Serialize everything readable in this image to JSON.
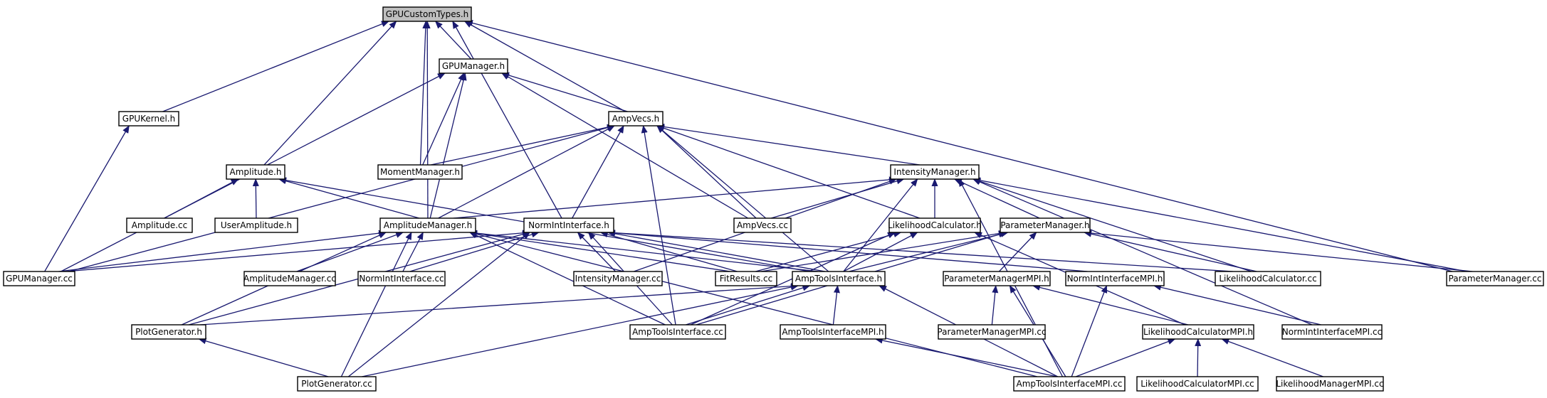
{
  "graph": {
    "title": "",
    "edge_color": "#191970",
    "root_fill": "#bfbfbf",
    "nodes": [
      {
        "id": "gpucustomtypes_h",
        "label": "GPUCustomTypes.h",
        "root": true
      },
      {
        "id": "gpumanager_h",
        "label": "GPUManager.h"
      },
      {
        "id": "gpukernel_h",
        "label": "GPUKernel.h"
      },
      {
        "id": "ampvecs_h",
        "label": "AmpVecs.h"
      },
      {
        "id": "amplitude_h",
        "label": "Amplitude.h"
      },
      {
        "id": "momentmanager_h",
        "label": "MomentManager.h"
      },
      {
        "id": "intensitymanager_h",
        "label": "IntensityManager.h"
      },
      {
        "id": "amplitude_cc",
        "label": "Amplitude.cc"
      },
      {
        "id": "useramplitude_h",
        "label": "UserAmplitude.h"
      },
      {
        "id": "amplitudemanager_h",
        "label": "AmplitudeManager.h"
      },
      {
        "id": "normintinterface_h",
        "label": "NormIntInterface.h"
      },
      {
        "id": "ampvecs_cc",
        "label": "AmpVecs.cc"
      },
      {
        "id": "likelihoodcalculator_h",
        "label": "LikelihoodCalculator.h"
      },
      {
        "id": "parametermanager_h",
        "label": "ParameterManager.h"
      },
      {
        "id": "gpumanager_cc",
        "label": "GPUManager.cc"
      },
      {
        "id": "amplitudemanager_cc",
        "label": "AmplitudeManager.cc"
      },
      {
        "id": "normintinterface_cc",
        "label": "NormIntInterface.cc"
      },
      {
        "id": "intensitymanager_cc",
        "label": "IntensityManager.cc"
      },
      {
        "id": "fitresults_cc",
        "label": "FitResults.cc"
      },
      {
        "id": "amptoolsinterface_h",
        "label": "AmpToolsInterface.h"
      },
      {
        "id": "parametermanagermpi_h",
        "label": "ParameterManagerMPI.h"
      },
      {
        "id": "normintinterfacempi_h",
        "label": "NormIntInterfaceMPI.h"
      },
      {
        "id": "likelihoodcalculator_cc",
        "label": "LikelihoodCalculator.cc"
      },
      {
        "id": "parametermanager_cc",
        "label": "ParameterManager.cc"
      },
      {
        "id": "plotgenerator_h",
        "label": "PlotGenerator.h"
      },
      {
        "id": "amptoolsinterface_cc",
        "label": "AmpToolsInterface.cc"
      },
      {
        "id": "amptoolsinterfacempi_h",
        "label": "AmpToolsInterfaceMPI.h"
      },
      {
        "id": "parametermanagermpi_cc",
        "label": "ParameterManagerMPI.cc"
      },
      {
        "id": "likelihoodcalculatormpi_h",
        "label": "LikelihoodCalculatorMPI.h"
      },
      {
        "id": "normintinterfacempi_cc",
        "label": "NormIntInterfaceMPI.cc"
      },
      {
        "id": "plotgenerator_cc",
        "label": "PlotGenerator.cc"
      },
      {
        "id": "amptoolsinterfacempi_cc",
        "label": "AmpToolsInterfaceMPI.cc"
      },
      {
        "id": "likelihoodcalculatormpi_cc",
        "label": "LikelihoodCalculatorMPI.cc"
      },
      {
        "id": "likelihoodmanagermpi_cc",
        "label": "LikelihoodManagerMPI.cc"
      }
    ],
    "edges": [
      [
        "gpucustomtypes_h",
        "gpumanager_h"
      ],
      [
        "gpucustomtypes_h",
        "gpukernel_h"
      ],
      [
        "gpucustomtypes_h",
        "amplitude_h"
      ],
      [
        "gpucustomtypes_h",
        "amplitudemanager_h"
      ],
      [
        "gpucustomtypes_h",
        "momentmanager_h"
      ],
      [
        "gpucustomtypes_h",
        "normintinterface_h"
      ],
      [
        "gpucustomtypes_h",
        "ampvecs_h"
      ],
      [
        "gpucustomtypes_h",
        "parametermanager_cc"
      ],
      [
        "gpumanager_h",
        "ampvecs_h"
      ],
      [
        "gpumanager_h",
        "momentmanager_h"
      ],
      [
        "gpumanager_h",
        "amplitudemanager_h"
      ],
      [
        "gpumanager_h",
        "gpumanager_cc"
      ],
      [
        "gpumanager_h",
        "ampvecs_cc"
      ],
      [
        "gpukernel_h",
        "gpumanager_cc"
      ],
      [
        "ampvecs_h",
        "momentmanager_h"
      ],
      [
        "ampvecs_h",
        "intensitymanager_h"
      ],
      [
        "ampvecs_h",
        "amplitudemanager_h"
      ],
      [
        "ampvecs_h",
        "normintinterface_h"
      ],
      [
        "ampvecs_h",
        "ampvecs_cc"
      ],
      [
        "ampvecs_h",
        "likelihoodcalculator_h"
      ],
      [
        "ampvecs_h",
        "gpumanager_cc"
      ],
      [
        "ampvecs_h",
        "amptoolsinterface_h"
      ],
      [
        "ampvecs_h",
        "amptoolsinterface_cc"
      ],
      [
        "amplitude_h",
        "amplitude_cc"
      ],
      [
        "amplitude_h",
        "useramplitude_h"
      ],
      [
        "amplitude_h",
        "amplitudemanager_h"
      ],
      [
        "amplitude_h",
        "amptoolsinterface_h"
      ],
      [
        "intensitymanager_h",
        "amplitudemanager_h"
      ],
      [
        "intensitymanager_h",
        "ampvecs_cc"
      ],
      [
        "intensitymanager_h",
        "likelihoodcalculator_h"
      ],
      [
        "intensitymanager_h",
        "parametermanager_h"
      ],
      [
        "intensitymanager_h",
        "intensitymanager_cc"
      ],
      [
        "intensitymanager_h",
        "amptoolsinterface_h"
      ],
      [
        "intensitymanager_h",
        "likelihoodcalculator_cc"
      ],
      [
        "intensitymanager_h",
        "parametermanager_cc"
      ],
      [
        "intensitymanager_h",
        "normintinterfacempi_cc"
      ],
      [
        "intensitymanager_h",
        "amptoolsinterfacempi_cc"
      ],
      [
        "amplitudemanager_h",
        "gpumanager_cc"
      ],
      [
        "amplitudemanager_h",
        "amplitudemanager_cc"
      ],
      [
        "amplitudemanager_h",
        "normintinterface_cc"
      ],
      [
        "amplitudemanager_h",
        "fitresults_cc"
      ],
      [
        "amplitudemanager_h",
        "amptoolsinterface_h"
      ],
      [
        "amplitudemanager_h",
        "plotgenerator_h"
      ],
      [
        "amplitudemanager_h",
        "amptoolsinterface_cc"
      ],
      [
        "amplitudemanager_h",
        "plotgenerator_cc"
      ],
      [
        "amplitudemanager_h",
        "amptoolsinterfacempi_cc"
      ],
      [
        "normintinterface_h",
        "gpumanager_cc"
      ],
      [
        "normintinterface_h",
        "normintinterface_cc"
      ],
      [
        "normintinterface_h",
        "intensitymanager_cc"
      ],
      [
        "normintinterface_h",
        "fitresults_cc"
      ],
      [
        "normintinterface_h",
        "amptoolsinterface_h"
      ],
      [
        "normintinterface_h",
        "normintinterfacempi_h"
      ],
      [
        "normintinterface_h",
        "likelihoodcalculator_cc"
      ],
      [
        "normintinterface_h",
        "plotgenerator_h"
      ],
      [
        "normintinterface_h",
        "amptoolsinterface_cc"
      ],
      [
        "normintinterface_h",
        "plotgenerator_cc"
      ],
      [
        "likelihoodcalculator_h",
        "fitresults_cc"
      ],
      [
        "likelihoodcalculator_h",
        "amptoolsinterface_h"
      ],
      [
        "likelihoodcalculator_h",
        "likelihoodcalculatormpi_h"
      ],
      [
        "likelihoodcalculator_h",
        "amptoolsinterface_cc"
      ],
      [
        "parametermanager_h",
        "fitresults_cc"
      ],
      [
        "parametermanager_h",
        "amptoolsinterface_h"
      ],
      [
        "parametermanager_h",
        "parametermanagermpi_h"
      ],
      [
        "parametermanager_h",
        "likelihoodcalculator_cc"
      ],
      [
        "parametermanager_h",
        "parametermanager_cc"
      ],
      [
        "parametermanager_h",
        "amptoolsinterface_cc"
      ],
      [
        "amptoolsinterface_h",
        "plotgenerator_h"
      ],
      [
        "amptoolsinterface_h",
        "amptoolsinterface_cc"
      ],
      [
        "amptoolsinterface_h",
        "amptoolsinterfacempi_h"
      ],
      [
        "amptoolsinterface_h",
        "plotgenerator_cc"
      ],
      [
        "amptoolsinterface_h",
        "amptoolsinterfacempi_cc"
      ],
      [
        "parametermanagermpi_h",
        "parametermanagermpi_cc"
      ],
      [
        "parametermanagermpi_h",
        "likelihoodcalculatormpi_h"
      ],
      [
        "parametermanagermpi_h",
        "amptoolsinterfacempi_cc"
      ],
      [
        "normintinterfacempi_h",
        "normintinterfacempi_cc"
      ],
      [
        "normintinterfacempi_h",
        "amptoolsinterfacempi_cc"
      ],
      [
        "plotgenerator_h",
        "plotgenerator_cc"
      ],
      [
        "amptoolsinterfacempi_h",
        "amptoolsinterfacempi_cc"
      ],
      [
        "likelihoodcalculatormpi_h",
        "amptoolsinterfacempi_cc"
      ],
      [
        "likelihoodcalculatormpi_h",
        "likelihoodcalculatormpi_cc"
      ],
      [
        "likelihoodcalculatormpi_h",
        "likelihoodmanagermpi_cc"
      ]
    ]
  }
}
